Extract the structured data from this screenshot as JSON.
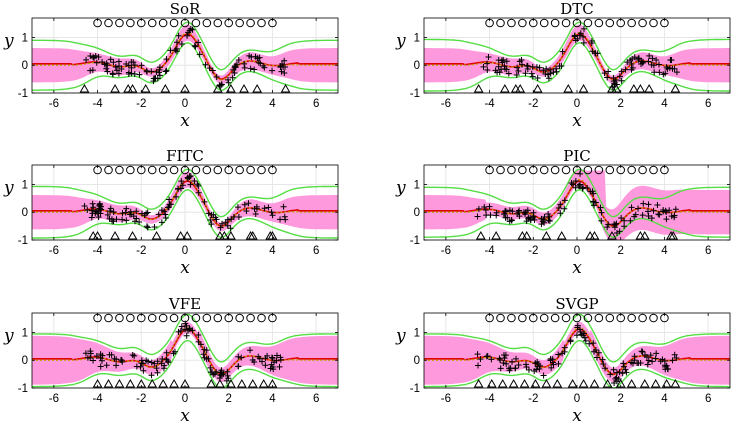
{
  "figure": {
    "xlabel": "x",
    "ylabel": "y",
    "colors": {
      "band": "#ff99dd",
      "green": "#55dd44",
      "true_fn": "#e00000",
      "mean": "#b8a000",
      "data": "#000000",
      "grid": "#e6e6e6"
    }
  },
  "chart_data": [
    {
      "type": "line",
      "title": "SoR",
      "xlim": [
        -7,
        7
      ],
      "ylim": [
        -1,
        1.7
      ],
      "xticks": [
        -6,
        -4,
        -2,
        0,
        2,
        4,
        6
      ],
      "yticks": [
        -1,
        0,
        1
      ],
      "grid": true,
      "inducing_points": [
        -4,
        -3.5,
        -3,
        -2.5,
        -2,
        -1.5,
        -1,
        -0.5,
        0,
        0.5,
        1,
        1.5,
        2,
        2.5,
        3,
        3.5,
        4
      ],
      "triangle_markers": [
        -4.6,
        -3.2,
        -2.6,
        -2.4,
        -1.8,
        -0.9,
        0,
        1.5,
        2.1,
        2.7,
        3.3,
        4.6
      ],
      "band_type": "flat",
      "band_halfwidth_outside": 0.62,
      "green_halfwidth_outside": 0.85
    },
    {
      "type": "line",
      "title": "DTC",
      "xlim": [
        -7,
        7
      ],
      "ylim": [
        -1,
        1.7
      ],
      "xticks": [
        -6,
        -4,
        -2,
        0,
        2,
        4,
        6
      ],
      "yticks": [
        -1,
        0,
        1
      ],
      "grid": true,
      "inducing_points": [
        -4,
        -3.5,
        -3,
        -2.5,
        -2,
        -1.5,
        -1,
        -0.5,
        0,
        0.5,
        1,
        1.5,
        2,
        2.5,
        3,
        3.5,
        4
      ],
      "triangle_markers": [
        -4.5,
        -3.3,
        -2.8,
        -2.6,
        -1.8,
        -0.4,
        0.3,
        1.6,
        1.8,
        2.6,
        2.9,
        3.3,
        4.5
      ],
      "band_type": "flat",
      "band_halfwidth_outside": 0.62,
      "green_halfwidth_outside": 0.88
    },
    {
      "type": "line",
      "title": "FITC",
      "xlim": [
        -7,
        7
      ],
      "ylim": [
        -1,
        1.7
      ],
      "xticks": [
        -6,
        -4,
        -2,
        0,
        2,
        4,
        6
      ],
      "yticks": [
        -1,
        0,
        1
      ],
      "grid": true,
      "inducing_points": [
        -4,
        -3.5,
        -3,
        -2.5,
        -2,
        -1.5,
        -1,
        -0.5,
        0,
        0.5,
        1,
        1.5,
        2,
        2.5,
        3,
        3.5,
        4
      ],
      "triangle_markers": [
        -4.2,
        -4.0,
        -3.2,
        -2.4,
        -1.3,
        -0.2,
        0.1,
        1.6,
        1.8,
        2.1,
        3.0,
        3.1,
        3.9,
        4.0
      ],
      "band_type": "flat",
      "band_halfwidth_outside": 0.62,
      "green_halfwidth_outside": 0.88
    },
    {
      "type": "line",
      "title": "PIC",
      "xlim": [
        -7,
        7
      ],
      "ylim": [
        -1,
        1.7
      ],
      "xticks": [
        -6,
        -4,
        -2,
        0,
        2,
        4,
        6
      ],
      "yticks": [
        -1,
        0,
        1
      ],
      "grid": true,
      "inducing_points": [
        -4,
        -3.5,
        -3,
        -2.5,
        -2,
        -1.5,
        -1,
        -0.5,
        0,
        0.5,
        1,
        1.5,
        2,
        2.5,
        3,
        3.5,
        4
      ],
      "triangle_markers": [
        -4.4,
        -3.7,
        -2.5,
        -2.3,
        -1.4,
        -0.7,
        0.6,
        0.8,
        1.6,
        2.9,
        3.1,
        4.3,
        4.4
      ],
      "band_type": "pic",
      "band_halfwidth_outside": 0.62,
      "green_halfwidth_outside": 0.85
    },
    {
      "type": "line",
      "title": "VFE",
      "xlim": [
        -7,
        7
      ],
      "ylim": [
        -1,
        1.7
      ],
      "xticks": [
        -6,
        -4,
        -2,
        0,
        2,
        4,
        6
      ],
      "yticks": [
        -1,
        0,
        1
      ],
      "grid": true,
      "inducing_points": [
        -4,
        -3.5,
        -3,
        -2.5,
        -2,
        -1.5,
        -1,
        -0.5,
        0,
        0.5,
        1,
        1.5,
        2,
        2.5,
        3,
        3.5,
        4
      ],
      "triangle_markers": [
        -4.0,
        -3.5,
        -3.0,
        -2.5,
        -2.0,
        -1.5,
        -1.0,
        -0.5,
        0.0,
        1.2,
        1.6,
        2.1,
        2.6,
        3.1,
        3.6,
        4.0
      ],
      "band_type": "wide",
      "band_halfwidth_outside": 0.88,
      "green_halfwidth_outside": 0.9
    },
    {
      "type": "line",
      "title": "SVGP",
      "xlim": [
        -7,
        7
      ],
      "ylim": [
        -1,
        1.7
      ],
      "xticks": [
        -6,
        -4,
        -2,
        0,
        2,
        4,
        6
      ],
      "yticks": [
        -1,
        0,
        1
      ],
      "grid": true,
      "inducing_points": [
        -4,
        -3.5,
        -3,
        -2.5,
        -2,
        -1.5,
        -1,
        -0.5,
        0,
        0.5,
        1,
        1.5,
        2,
        2.5,
        3,
        3.5,
        4
      ],
      "triangle_markers": [
        -4.5,
        -3.9,
        -3.4,
        -2.9,
        -2.4,
        -1.9,
        -1.4,
        -0.9,
        -0.2,
        0.3,
        0.8,
        1.4,
        2.0,
        2.5,
        3.1,
        3.6,
        4.1,
        4.5
      ],
      "band_type": "wide",
      "band_halfwidth_outside": 0.88,
      "green_halfwidth_outside": 0.9
    }
  ]
}
